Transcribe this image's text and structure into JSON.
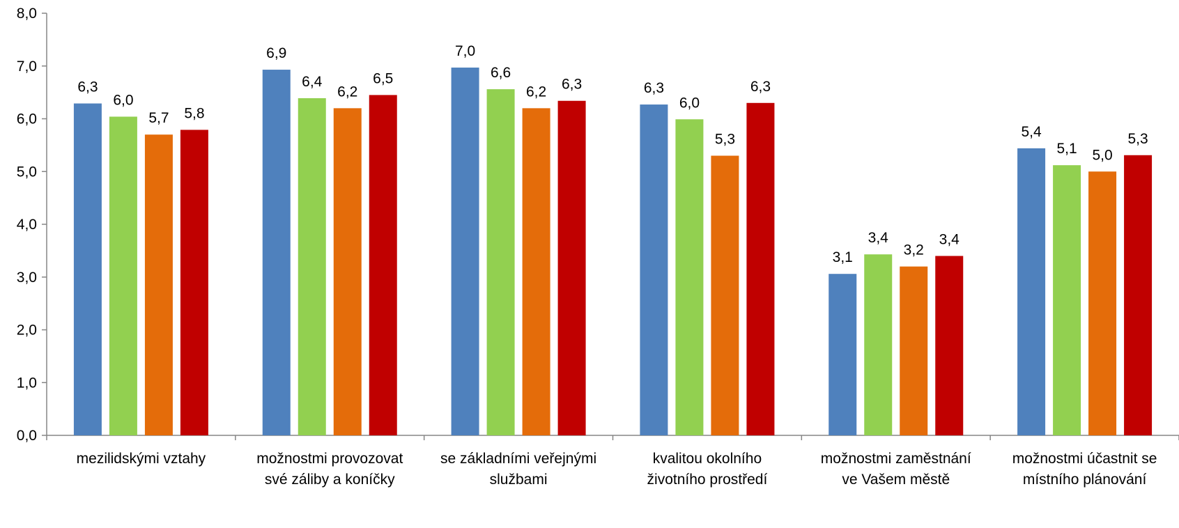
{
  "chart_data": {
    "type": "bar",
    "title": "",
    "xlabel": "",
    "ylabel": "",
    "ylim": [
      0,
      8
    ],
    "yticks": [
      "0,0",
      "1,0",
      "2,0",
      "3,0",
      "4,0",
      "5,0",
      "6,0",
      "7,0",
      "8,0"
    ],
    "grid": false,
    "legend": "none",
    "categories": [
      [
        "mezilidskými vztahy"
      ],
      [
        "možnostmi provozovat",
        "své záliby a koníčky"
      ],
      [
        "se základními veřejnými",
        "službami"
      ],
      [
        "kvalitou okolního",
        "životního prostředí"
      ],
      [
        "možnostmi zaměstnání",
        "ve Vašem městě"
      ],
      [
        "možnostmi účastnit se",
        "místního plánování"
      ]
    ],
    "series": [
      {
        "color": "#4F81BD",
        "values": [
          6.29,
          6.93,
          6.97,
          6.27,
          3.06,
          5.44
        ],
        "labels": [
          "6,3",
          "6,9",
          "7,0",
          "6,3",
          "3,1",
          "5,4"
        ]
      },
      {
        "color": "#92D050",
        "values": [
          6.04,
          6.39,
          6.56,
          5.99,
          3.43,
          5.12
        ],
        "labels": [
          "6,0",
          "6,4",
          "6,6",
          "6,0",
          "3,4",
          "5,1"
        ]
      },
      {
        "color": "#E46C0A",
        "values": [
          5.7,
          6.2,
          6.2,
          5.3,
          3.2,
          5.0
        ],
        "labels": [
          "5,7",
          "6,2",
          "6,2",
          "5,3",
          "3,2",
          "5,0"
        ]
      },
      {
        "color": "#C00000",
        "values": [
          5.79,
          6.45,
          6.34,
          6.3,
          3.4,
          5.31
        ],
        "labels": [
          "5,8",
          "6,5",
          "6,3",
          "6,3",
          "3,4",
          "5,3"
        ]
      }
    ]
  }
}
